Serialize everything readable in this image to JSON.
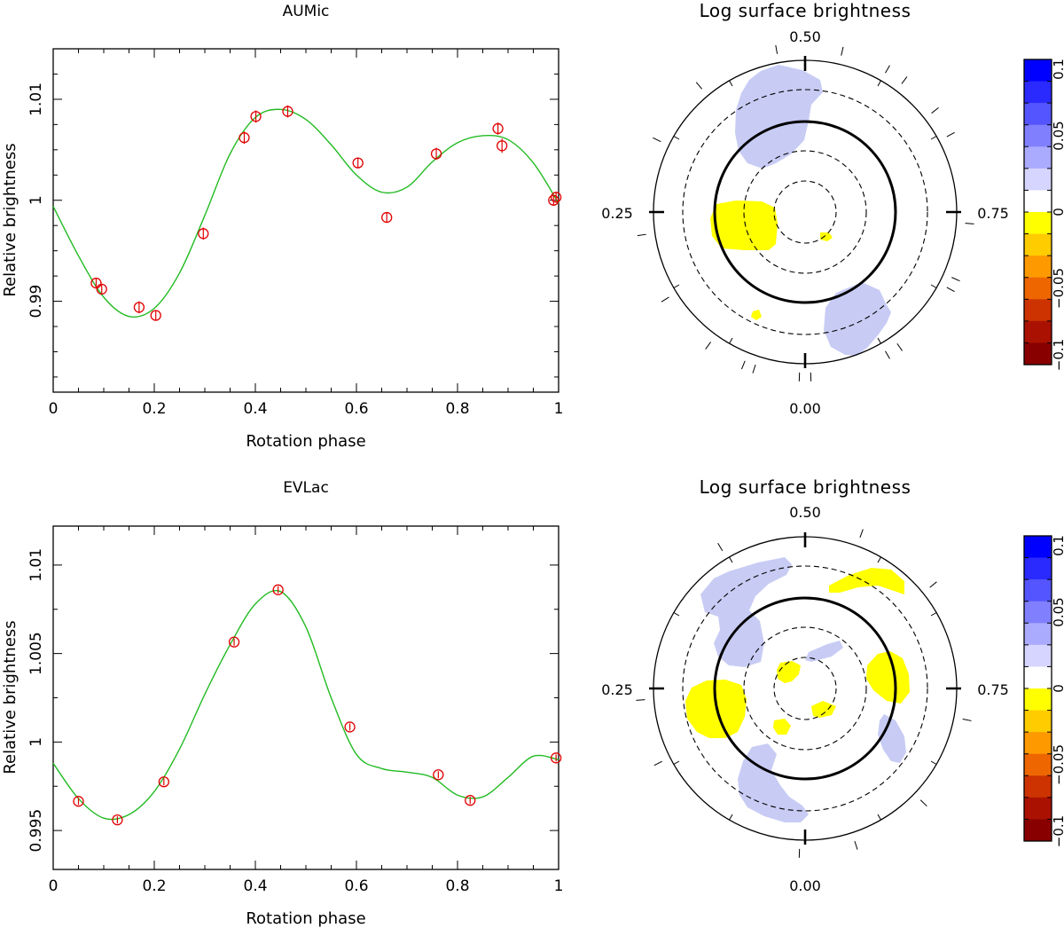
{
  "chart_data": [
    {
      "type": "scatter",
      "title": "AUMic",
      "xlabel": "Rotation phase",
      "ylabel": "Relative brightness",
      "xlim": [
        0,
        1
      ],
      "ylim": [
        0.981,
        1.015
      ],
      "xticks": [
        "0",
        "0.2",
        "0.4",
        "0.6",
        "0.8",
        "1"
      ],
      "yticks": [
        "0.99",
        "1",
        "1.01"
      ],
      "points": [
        {
          "x": 0.085,
          "y": 0.9918,
          "err": 0.0005
        },
        {
          "x": 0.096,
          "y": 0.9912,
          "err": 0.0005
        },
        {
          "x": 0.17,
          "y": 0.9894,
          "err": 0.0006
        },
        {
          "x": 0.203,
          "y": 0.9886,
          "err": 0.0005
        },
        {
          "x": 0.297,
          "y": 0.9967,
          "err": 0.0006
        },
        {
          "x": 0.378,
          "y": 1.0062,
          "err": 0.0006
        },
        {
          "x": 0.401,
          "y": 1.0083,
          "err": 0.0006
        },
        {
          "x": 0.464,
          "y": 1.0088,
          "err": 0.0006
        },
        {
          "x": 0.603,
          "y": 1.0037,
          "err": 0.0005
        },
        {
          "x": 0.66,
          "y": 0.9983,
          "err": 0.0005
        },
        {
          "x": 0.758,
          "y": 1.0046,
          "err": 0.0006
        },
        {
          "x": 0.88,
          "y": 1.0071,
          "err": 0.0006
        },
        {
          "x": 0.888,
          "y": 1.0054,
          "err": 0.0007
        },
        {
          "x": 0.99,
          "y": 1.0,
          "err": 0.0005
        },
        {
          "x": 0.995,
          "y": 1.0003,
          "err": 0.0005
        }
      ],
      "model": [
        [
          0.0,
          0.9994
        ],
        [
          0.05,
          0.9945
        ],
        [
          0.1,
          0.9904
        ],
        [
          0.15,
          0.9885
        ],
        [
          0.2,
          0.9893
        ],
        [
          0.25,
          0.9928
        ],
        [
          0.3,
          0.9985
        ],
        [
          0.35,
          1.0046
        ],
        [
          0.4,
          1.0082
        ],
        [
          0.45,
          1.009
        ],
        [
          0.5,
          1.008
        ],
        [
          0.55,
          1.0055
        ],
        [
          0.6,
          1.0025
        ],
        [
          0.65,
          1.0008
        ],
        [
          0.7,
          1.0013
        ],
        [
          0.75,
          1.0038
        ],
        [
          0.8,
          1.0057
        ],
        [
          0.85,
          1.0064
        ],
        [
          0.9,
          1.006
        ],
        [
          0.95,
          1.0037
        ],
        [
          1.0,
          0.9997
        ]
      ]
    },
    {
      "type": "scatter",
      "title": "EVLac",
      "xlabel": "Rotation phase",
      "ylabel": "Relative brightness",
      "xlim": [
        0,
        1
      ],
      "ylim": [
        0.9928,
        1.0122
      ],
      "xticks": [
        "0",
        "0.2",
        "0.4",
        "0.6",
        "0.8",
        "1"
      ],
      "yticks": [
        "0.995",
        "1",
        "1.005",
        "1.01"
      ],
      "points": [
        {
          "x": 0.05,
          "y": 0.99665,
          "err": 0.0002
        },
        {
          "x": 0.127,
          "y": 0.9956,
          "err": 0.0002
        },
        {
          "x": 0.219,
          "y": 0.99775,
          "err": 0.0002
        },
        {
          "x": 0.358,
          "y": 1.00565,
          "err": 0.0002
        },
        {
          "x": 0.445,
          "y": 1.0086,
          "err": 0.0002
        },
        {
          "x": 0.587,
          "y": 1.00085,
          "err": 0.0002
        },
        {
          "x": 0.762,
          "y": 0.99815,
          "err": 0.0002
        },
        {
          "x": 0.825,
          "y": 0.9967,
          "err": 0.0002
        },
        {
          "x": 0.995,
          "y": 0.9991,
          "err": 0.0002
        }
      ],
      "model": [
        [
          0.0,
          0.9988
        ],
        [
          0.05,
          0.9968
        ],
        [
          0.1,
          0.9957
        ],
        [
          0.15,
          0.9959
        ],
        [
          0.2,
          0.9972
        ],
        [
          0.25,
          0.9996
        ],
        [
          0.3,
          1.0027
        ],
        [
          0.35,
          1.0055
        ],
        [
          0.4,
          1.0078
        ],
        [
          0.45,
          1.0085
        ],
        [
          0.5,
          1.0065
        ],
        [
          0.55,
          1.0025
        ],
        [
          0.6,
          0.9993
        ],
        [
          0.65,
          0.9985
        ],
        [
          0.7,
          0.9983
        ],
        [
          0.75,
          0.998
        ],
        [
          0.8,
          0.997
        ],
        [
          0.85,
          0.9969
        ],
        [
          0.9,
          0.998
        ],
        [
          0.95,
          0.9992
        ],
        [
          1.0,
          0.999
        ]
      ]
    }
  ],
  "maps": [
    {
      "title": "Log surface brightness",
      "phase_top": "0.50",
      "phase_left": "0.25",
      "phase_right": "0.75",
      "phase_bottom": "0.00",
      "colorbar_labels": [
        "0.1",
        "0.05",
        "0",
        "−0.05",
        "−0.1"
      ]
    },
    {
      "title": "Log surface brightness",
      "phase_top": "0.50",
      "phase_left": "0.25",
      "phase_right": "0.75",
      "phase_bottom": "0.00",
      "colorbar_labels": [
        "0.1",
        "0.05",
        "0",
        "−0.05",
        "−0.1"
      ]
    }
  ],
  "colors": {
    "points": "#e00000",
    "model": "#22bb22",
    "bright_spot": "#c8ccf4",
    "dark_spot": "#ffff00",
    "colorbar": [
      "#0000ff",
      "#2a2aff",
      "#5555ff",
      "#8080ff",
      "#aaaaff",
      "#d5d5ff",
      "#ffffff",
      "#ffff00",
      "#ffcc00",
      "#ff9900",
      "#ee6600",
      "#cc3300",
      "#aa1100",
      "#880000"
    ]
  }
}
